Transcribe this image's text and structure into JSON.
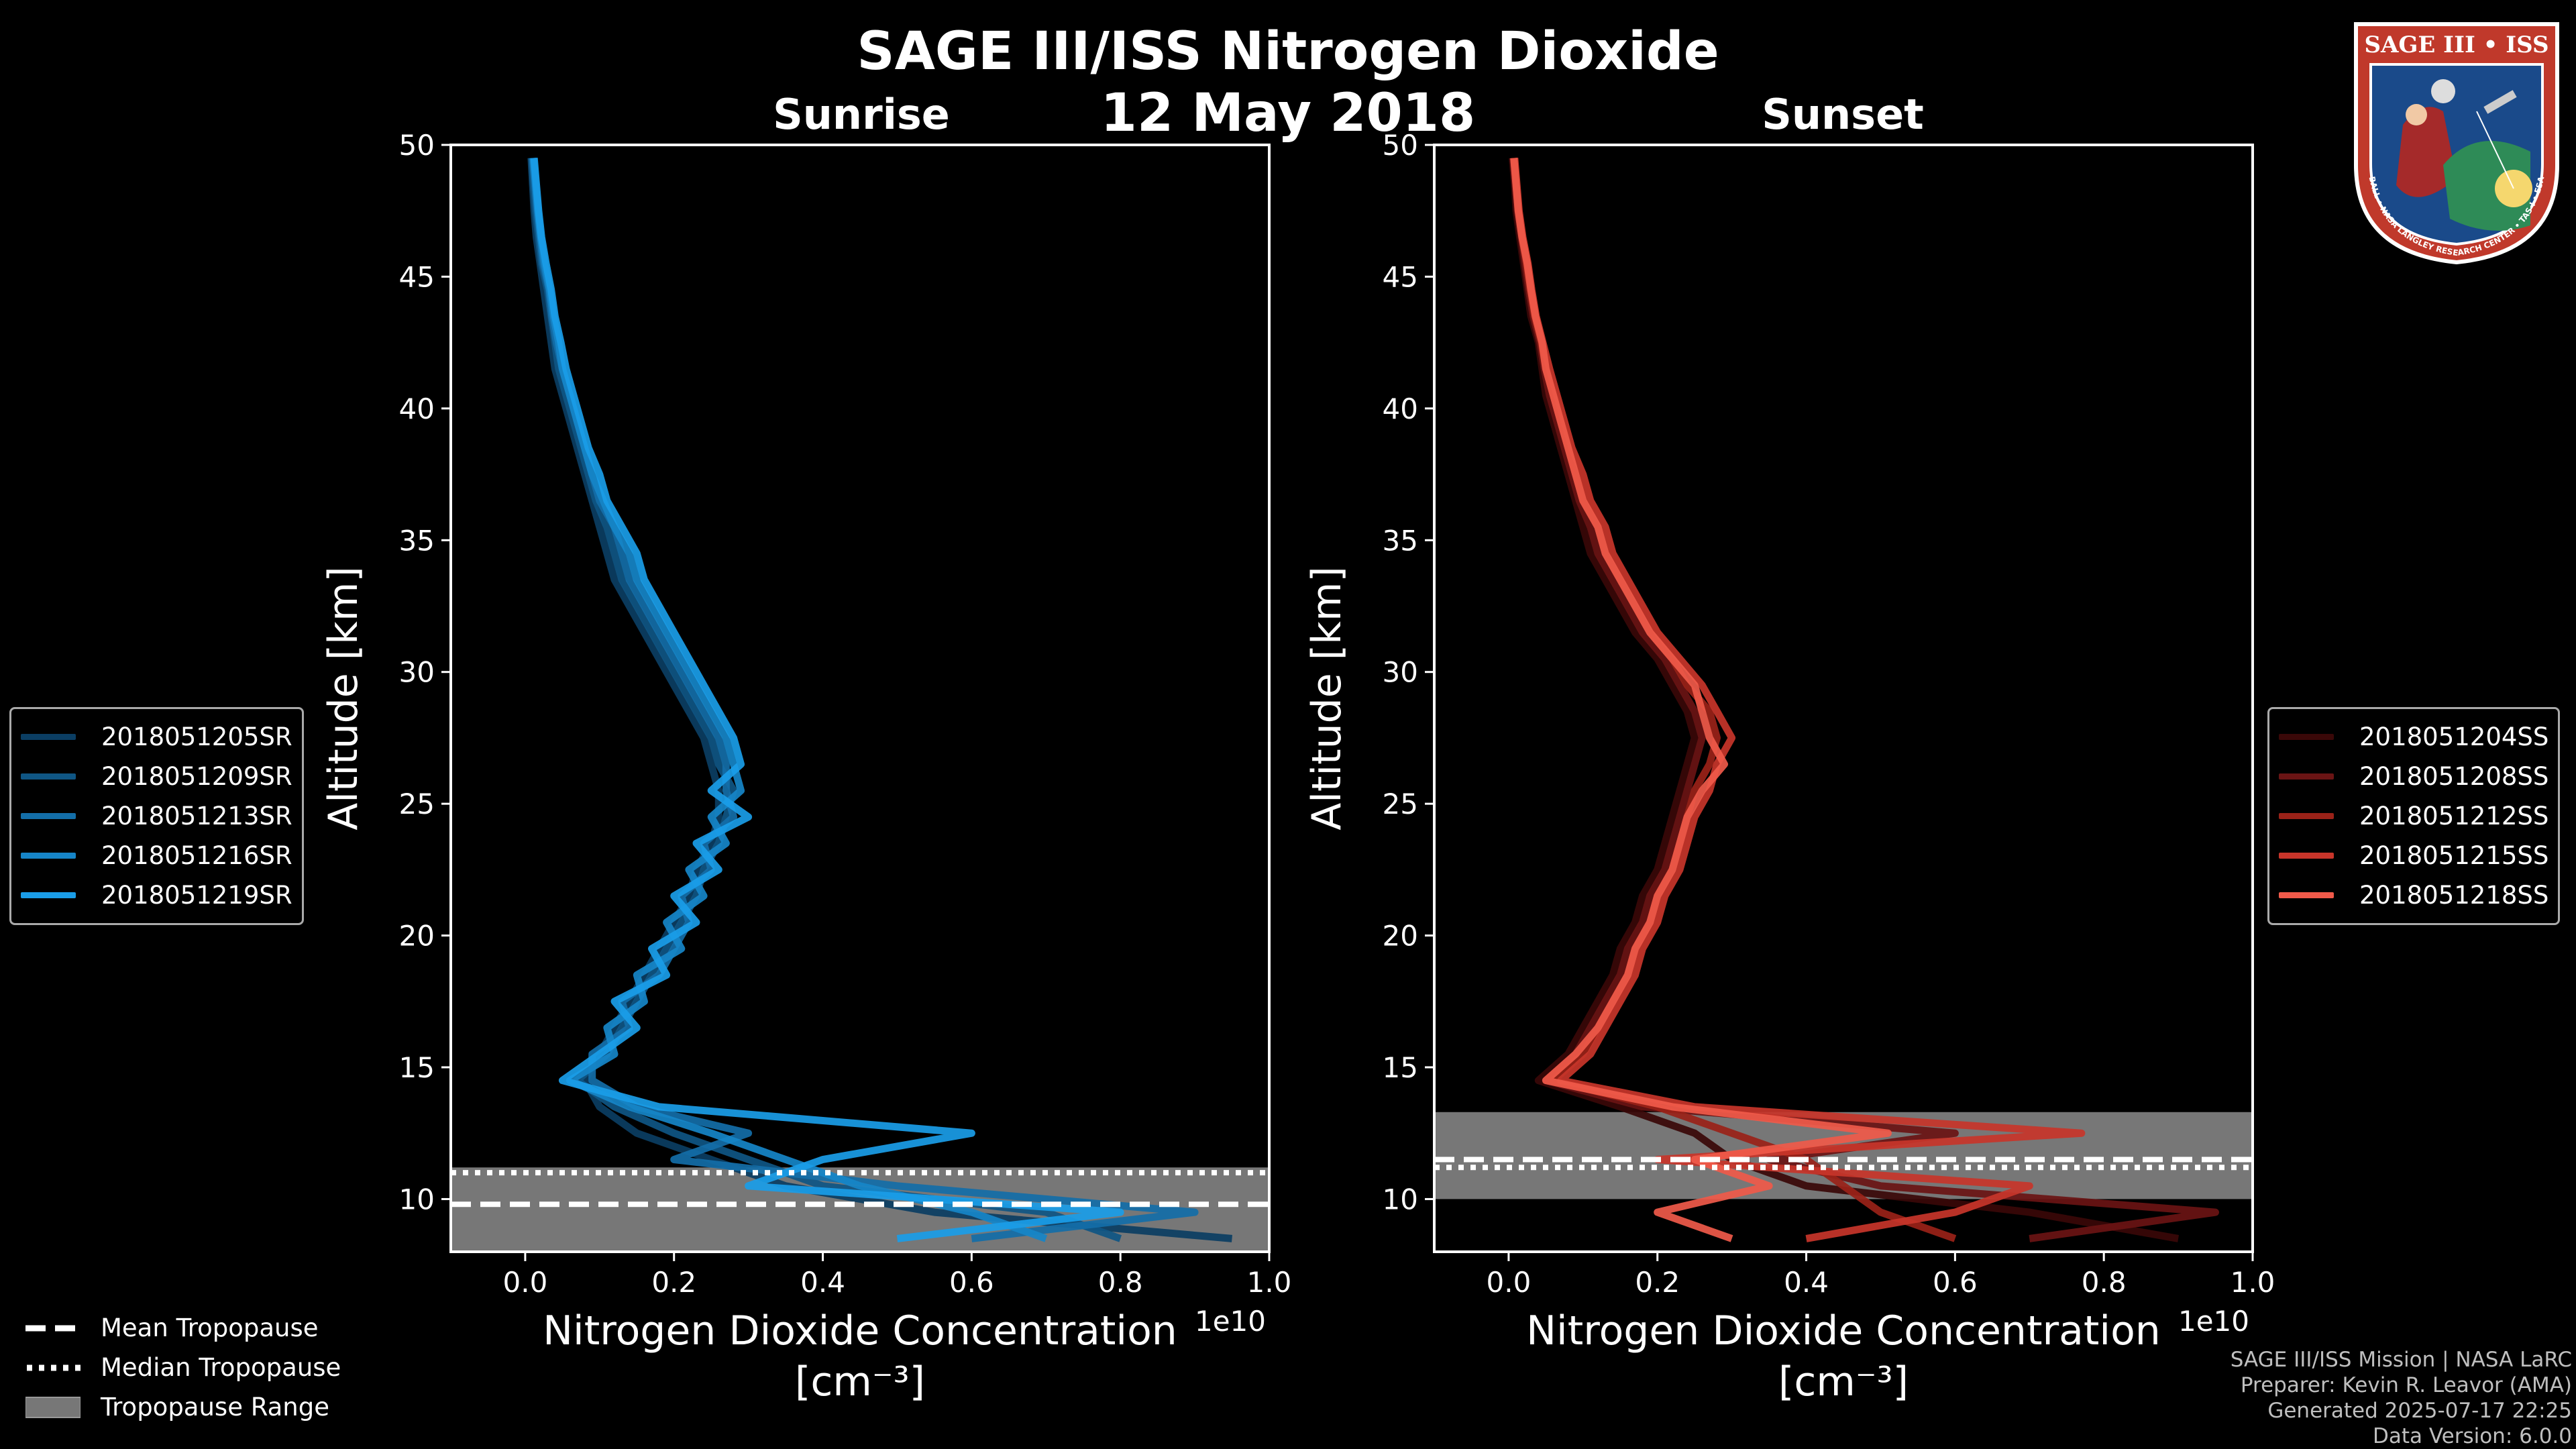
{
  "figure": {
    "title": "SAGE III/ISS Nitrogen Dioxide",
    "subtitle": "12 May 2018"
  },
  "chart_data": [
    {
      "type": "line",
      "panel": "left",
      "title": "Sunrise",
      "xlabel": "Nitrogen Dioxide Concentration",
      "xlabel_unit": "[cm⁻³]",
      "ylabel": "Altitude [km]",
      "x_offset_label": "1e10",
      "xlim": [
        -0.1,
        1.0
      ],
      "ylim": [
        8,
        50
      ],
      "xticks": [
        0.0,
        0.2,
        0.4,
        0.6,
        0.8,
        1.0
      ],
      "xtick_labels": [
        "0.0",
        "0.2",
        "0.4",
        "0.6",
        "0.8",
        "1.0"
      ],
      "yticks": [
        10,
        15,
        20,
        25,
        30,
        35,
        40,
        45,
        50
      ],
      "ytick_labels": [
        "10",
        "15",
        "20",
        "25",
        "30",
        "35",
        "40",
        "45",
        "50"
      ],
      "tropopause": {
        "mean": 9.8,
        "median": 11.0,
        "range": [
          8.0,
          11.2
        ]
      },
      "altitudes": [
        8.5,
        9.5,
        10.5,
        11.5,
        12.5,
        13.5,
        14.5,
        15.5,
        16.5,
        17.5,
        18.5,
        19.5,
        20.5,
        21.5,
        22.5,
        23.5,
        24.5,
        25.5,
        26.5,
        27.5,
        28.5,
        29.5,
        30.5,
        31.5,
        32.5,
        33.5,
        34.5,
        35.5,
        36.5,
        37.5,
        38.5,
        39.5,
        40.5,
        41.5,
        42.5,
        43.5,
        44.5,
        45.5,
        46.5,
        47.5,
        48.5,
        49.5
      ],
      "series": [
        {
          "name": "2018051205SR",
          "color": "#0b3e63",
          "values": [
            0.95,
            0.55,
            0.35,
            0.25,
            0.15,
            0.1,
            0.08,
            0.1,
            0.12,
            0.14,
            0.16,
            0.18,
            0.2,
            0.22,
            0.23,
            0.25,
            0.26,
            0.26,
            0.25,
            0.24,
            0.22,
            0.2,
            0.18,
            0.16,
            0.14,
            0.12,
            0.11,
            0.1,
            0.09,
            0.08,
            0.07,
            0.06,
            0.05,
            0.04,
            0.035,
            0.03,
            0.025,
            0.02,
            0.015,
            0.012,
            0.01,
            0.008
          ]
        },
        {
          "name": "2018051209SR",
          "color": "#0f5684",
          "values": [
            0.8,
            0.7,
            0.4,
            0.3,
            0.2,
            0.12,
            0.07,
            0.11,
            0.13,
            0.15,
            0.17,
            0.19,
            0.21,
            0.23,
            0.24,
            0.26,
            0.27,
            0.28,
            0.26,
            0.25,
            0.23,
            0.21,
            0.19,
            0.17,
            0.15,
            0.13,
            0.12,
            0.11,
            0.095,
            0.085,
            0.075,
            0.065,
            0.055,
            0.045,
            0.04,
            0.035,
            0.03,
            0.022,
            0.018,
            0.014,
            0.011,
            0.009
          ]
        },
        {
          "name": "2018051213SR",
          "color": "#136ea8",
          "values": [
            0.6,
            0.9,
            0.5,
            0.2,
            0.3,
            0.15,
            0.09,
            0.09,
            0.14,
            0.13,
            0.18,
            0.2,
            0.22,
            0.21,
            0.25,
            0.24,
            0.28,
            0.27,
            0.27,
            0.26,
            0.24,
            0.22,
            0.2,
            0.18,
            0.16,
            0.14,
            0.13,
            0.12,
            0.1,
            0.09,
            0.08,
            0.07,
            0.06,
            0.05,
            0.042,
            0.036,
            0.032,
            0.024,
            0.02,
            0.016,
            0.013,
            0.01
          ]
        },
        {
          "name": "2018051216SR",
          "color": "#1685c8",
          "values": [
            0.7,
            0.6,
            0.45,
            0.35,
            0.25,
            0.14,
            0.06,
            0.12,
            0.11,
            0.16,
            0.15,
            0.21,
            0.19,
            0.24,
            0.22,
            0.27,
            0.25,
            0.29,
            0.28,
            0.27,
            0.25,
            0.23,
            0.21,
            0.19,
            0.17,
            0.15,
            0.14,
            0.12,
            0.105,
            0.09,
            0.08,
            0.07,
            0.06,
            0.05,
            0.045,
            0.038,
            0.033,
            0.026,
            0.021,
            0.017,
            0.014,
            0.011
          ]
        },
        {
          "name": "2018051219SR",
          "color": "#1a9de8",
          "values": [
            0.5,
            0.8,
            0.3,
            0.4,
            0.6,
            0.18,
            0.05,
            0.1,
            0.15,
            0.12,
            0.19,
            0.17,
            0.23,
            0.2,
            0.26,
            0.23,
            0.3,
            0.25,
            0.29,
            0.28,
            0.26,
            0.24,
            0.22,
            0.2,
            0.18,
            0.16,
            0.15,
            0.13,
            0.11,
            0.1,
            0.085,
            0.075,
            0.065,
            0.055,
            0.048,
            0.04,
            0.035,
            0.028,
            0.022,
            0.018,
            0.015,
            0.012
          ]
        }
      ]
    },
    {
      "type": "line",
      "panel": "right",
      "title": "Sunset",
      "xlabel": "Nitrogen Dioxide Concentration",
      "xlabel_unit": "[cm⁻³]",
      "ylabel": "Altitude [km]",
      "x_offset_label": "1e10",
      "xlim": [
        -0.1,
        1.0
      ],
      "ylim": [
        8,
        50
      ],
      "xticks": [
        0.0,
        0.2,
        0.4,
        0.6,
        0.8,
        1.0
      ],
      "xtick_labels": [
        "0.0",
        "0.2",
        "0.4",
        "0.6",
        "0.8",
        "1.0"
      ],
      "yticks": [
        10,
        15,
        20,
        25,
        30,
        35,
        40,
        45,
        50
      ],
      "ytick_labels": [
        "10",
        "15",
        "20",
        "25",
        "30",
        "35",
        "40",
        "45",
        "50"
      ],
      "tropopause": {
        "mean": 11.5,
        "median": 11.2,
        "range": [
          10.0,
          13.3
        ]
      },
      "altitudes": [
        8.5,
        9.5,
        10.5,
        11.5,
        12.5,
        13.5,
        14.5,
        15.5,
        16.5,
        17.5,
        18.5,
        19.5,
        20.5,
        21.5,
        22.5,
        23.5,
        24.5,
        25.5,
        26.5,
        27.5,
        28.5,
        29.5,
        30.5,
        31.5,
        32.5,
        33.5,
        34.5,
        35.5,
        36.5,
        37.5,
        38.5,
        39.5,
        40.5,
        41.5,
        42.5,
        43.5,
        44.5,
        45.5,
        46.5,
        47.5,
        48.5,
        49.5
      ],
      "series": [
        {
          "name": "2018051204SS",
          "color": "#3a0808",
          "values": [
            0.9,
            0.7,
            0.4,
            0.3,
            0.25,
            0.15,
            0.04,
            0.08,
            0.1,
            0.12,
            0.14,
            0.15,
            0.17,
            0.18,
            0.2,
            0.21,
            0.22,
            0.23,
            0.24,
            0.25,
            0.24,
            0.22,
            0.2,
            0.17,
            0.15,
            0.13,
            0.11,
            0.1,
            0.09,
            0.08,
            0.07,
            0.06,
            0.05,
            0.045,
            0.04,
            0.03,
            0.025,
            0.02,
            0.015,
            0.01,
            0.008,
            0.005
          ]
        },
        {
          "name": "2018051208SS",
          "color": "#6a1414",
          "values": [
            0.7,
            0.95,
            0.5,
            0.35,
            0.6,
            0.18,
            0.05,
            0.09,
            0.11,
            0.13,
            0.15,
            0.16,
            0.18,
            0.19,
            0.21,
            0.22,
            0.23,
            0.24,
            0.25,
            0.26,
            0.25,
            0.23,
            0.21,
            0.18,
            0.16,
            0.14,
            0.12,
            0.11,
            0.095,
            0.085,
            0.075,
            0.065,
            0.055,
            0.048,
            0.042,
            0.033,
            0.027,
            0.022,
            0.017,
            0.012,
            0.009,
            0.006
          ]
        },
        {
          "name": "2018051212SS",
          "color": "#9a2218",
          "values": [
            0.6,
            0.5,
            0.45,
            0.4,
            0.3,
            0.2,
            0.06,
            0.1,
            0.12,
            0.14,
            0.16,
            0.17,
            0.19,
            0.2,
            0.22,
            0.23,
            0.24,
            0.25,
            0.27,
            0.28,
            0.27,
            0.24,
            0.22,
            0.19,
            0.17,
            0.15,
            0.13,
            0.12,
            0.1,
            0.09,
            0.08,
            0.07,
            0.06,
            0.05,
            0.044,
            0.035,
            0.029,
            0.024,
            0.018,
            0.013,
            0.01,
            0.007
          ]
        },
        {
          "name": "2018051215SS",
          "color": "#c8352a",
          "values": [
            0.4,
            0.6,
            0.7,
            0.2,
            0.77,
            0.25,
            0.07,
            0.11,
            0.13,
            0.15,
            0.17,
            0.18,
            0.2,
            0.21,
            0.23,
            0.24,
            0.25,
            0.27,
            0.28,
            0.3,
            0.28,
            0.26,
            0.23,
            0.2,
            0.18,
            0.16,
            0.14,
            0.13,
            0.11,
            0.1,
            0.085,
            0.075,
            0.065,
            0.055,
            0.046,
            0.037,
            0.031,
            0.026,
            0.019,
            0.014,
            0.011,
            0.008
          ]
        },
        {
          "name": "2018051218SS",
          "color": "#f05a4a",
          "values": [
            0.3,
            0.2,
            0.35,
            0.25,
            0.51,
            0.22,
            0.05,
            0.09,
            0.12,
            0.14,
            0.16,
            0.17,
            0.19,
            0.2,
            0.22,
            0.23,
            0.24,
            0.26,
            0.29,
            0.27,
            0.26,
            0.25,
            0.22,
            0.19,
            0.17,
            0.15,
            0.13,
            0.12,
            0.1,
            0.09,
            0.08,
            0.07,
            0.06,
            0.05,
            0.045,
            0.036,
            0.03,
            0.025,
            0.018,
            0.013,
            0.01,
            0.007
          ]
        }
      ]
    }
  ],
  "tropopause_legend": {
    "mean": "Mean Tropopause",
    "median": "Median Tropopause",
    "range": "Tropopause Range"
  },
  "credits": {
    "line1": "SAGE III/ISS Mission | NASA LaRC",
    "line2": "Preparer: Kevin R. Leavor (AMA)",
    "line3": "Generated 2025-07-17 22:25",
    "line4": "Data Version: 6.0.0"
  },
  "logo": {
    "top_text": "SAGE III • ISS",
    "ring_text": "BALL • NASA LANGLEY RESEARCH CENTER • TAS-I • ESA",
    "colors": {
      "ring": "#c0392b",
      "inner": "#1a4a8a",
      "band": "#ffffff"
    }
  }
}
